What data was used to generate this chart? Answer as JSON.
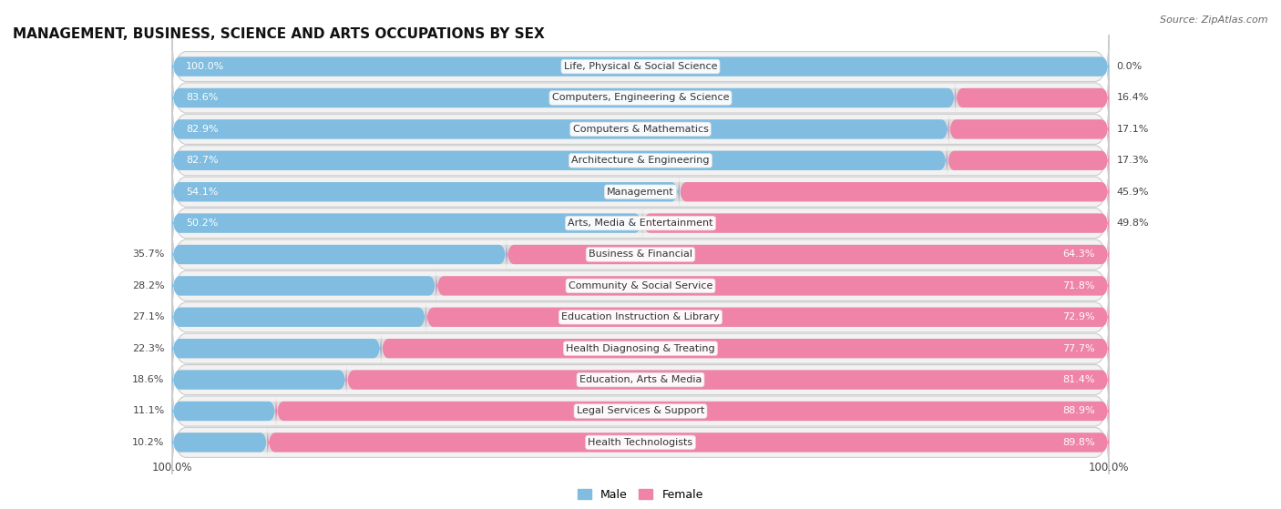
{
  "title": "MANAGEMENT, BUSINESS, SCIENCE AND ARTS OCCUPATIONS BY SEX",
  "source": "Source: ZipAtlas.com",
  "categories": [
    "Life, Physical & Social Science",
    "Computers, Engineering & Science",
    "Computers & Mathematics",
    "Architecture & Engineering",
    "Management",
    "Arts, Media & Entertainment",
    "Business & Financial",
    "Community & Social Service",
    "Education Instruction & Library",
    "Health Diagnosing & Treating",
    "Education, Arts & Media",
    "Legal Services & Support",
    "Health Technologists"
  ],
  "male_pct": [
    100.0,
    83.6,
    82.9,
    82.7,
    54.1,
    50.2,
    35.7,
    28.2,
    27.1,
    22.3,
    18.6,
    11.1,
    10.2
  ],
  "female_pct": [
    0.0,
    16.4,
    17.1,
    17.3,
    45.9,
    49.8,
    64.3,
    71.8,
    72.9,
    77.7,
    81.4,
    88.9,
    89.8
  ],
  "male_color": "#80bde0",
  "female_color": "#f083a8",
  "bg_color": "#f0f0f0",
  "row_bg": "#e8e8e8",
  "title_fontsize": 11,
  "label_fontsize": 8.0,
  "cat_fontsize": 8.0,
  "bar_height": 0.62,
  "figsize": [
    14.06,
    5.59
  ],
  "dpi": 100
}
